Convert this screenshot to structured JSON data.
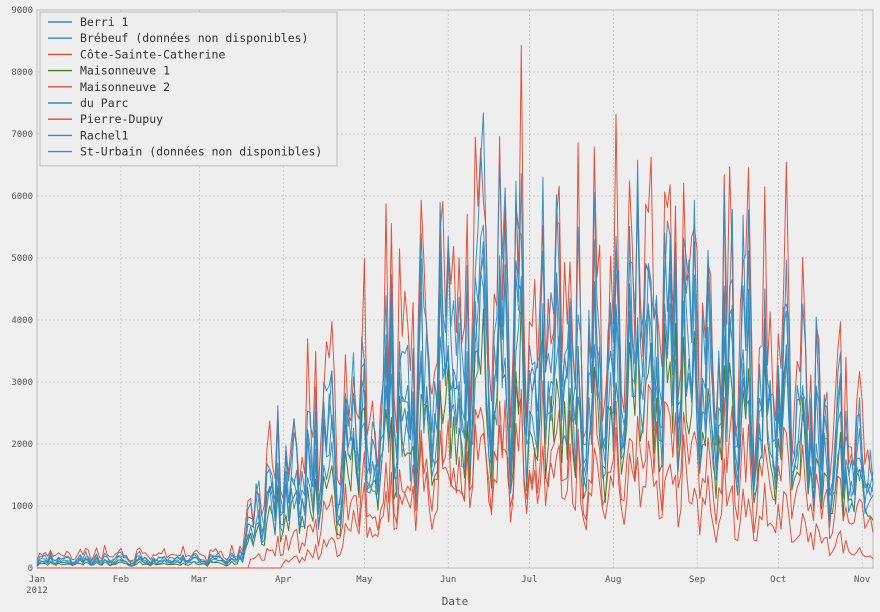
{
  "chart_data": {
    "type": "line",
    "xlabel": "Date",
    "ylabel": "",
    "x_start": "2012-01-01",
    "x_end": "2012-11-05",
    "xlim": [
      "2012-01-01",
      "2012-11-05"
    ],
    "ylim": [
      0,
      9000
    ],
    "grid": true,
    "legend_position": "top-left",
    "y_ticks": [
      0,
      1000,
      2000,
      3000,
      4000,
      5000,
      6000,
      7000,
      8000,
      9000
    ],
    "x_ticks": [
      {
        "date": "2012-01-01",
        "label": "Jan",
        "sublabel": "2012"
      },
      {
        "date": "2012-02-01",
        "label": "Feb",
        "sublabel": ""
      },
      {
        "date": "2012-03-01",
        "label": "Mar",
        "sublabel": ""
      },
      {
        "date": "2012-04-01",
        "label": "Apr",
        "sublabel": ""
      },
      {
        "date": "2012-05-01",
        "label": "May",
        "sublabel": ""
      },
      {
        "date": "2012-06-01",
        "label": "Jun",
        "sublabel": ""
      },
      {
        "date": "2012-07-01",
        "label": "Jul",
        "sublabel": ""
      },
      {
        "date": "2012-08-01",
        "label": "Aug",
        "sublabel": ""
      },
      {
        "date": "2012-09-01",
        "label": "Sep",
        "sublabel": ""
      },
      {
        "date": "2012-10-01",
        "label": "Oct",
        "sublabel": ""
      },
      {
        "date": "2012-11-01",
        "label": "Nov",
        "sublabel": ""
      }
    ],
    "series": [
      {
        "name": "Berri 1",
        "color": "#348abd",
        "scale": 1.0,
        "seed": 11,
        "active_from": "2012-01-01",
        "anchors": [
          [
            "2012-01-01",
            130
          ],
          [
            "2012-03-15",
            150
          ],
          [
            "2012-03-25",
            1500
          ],
          [
            "2012-04-10",
            1500
          ],
          [
            "2012-05-01",
            2600
          ],
          [
            "2012-06-01",
            3800
          ],
          [
            "2012-07-01",
            4000
          ],
          [
            "2012-08-01",
            3700
          ],
          [
            "2012-09-01",
            3900
          ],
          [
            "2012-10-01",
            3100
          ],
          [
            "2012-11-05",
            1700
          ]
        ]
      },
      {
        "name": "Brébeuf (données non disponibles)",
        "color": "#348abd",
        "scale": 1.2,
        "seed": 23,
        "active_from": "2012-01-01",
        "anchors": [
          [
            "2012-01-01",
            160
          ],
          [
            "2012-03-15",
            180
          ],
          [
            "2012-03-25",
            1800
          ],
          [
            "2012-04-10",
            1800
          ],
          [
            "2012-05-01",
            3100
          ],
          [
            "2012-06-01",
            4500
          ],
          [
            "2012-07-01",
            4700
          ],
          [
            "2012-08-01",
            4300
          ],
          [
            "2012-09-01",
            4500
          ],
          [
            "2012-10-01",
            3600
          ],
          [
            "2012-11-05",
            2000
          ]
        ]
      },
      {
        "name": "Côte-Sainte-Catherine",
        "color": "#e24a33",
        "scale": 0.75,
        "seed": 37,
        "active_from": "2012-03-20",
        "anchors": [
          [
            "2012-03-20",
            200
          ],
          [
            "2012-04-10",
            600
          ],
          [
            "2012-05-01",
            1400
          ],
          [
            "2012-06-01",
            2200
          ],
          [
            "2012-07-01",
            2300
          ],
          [
            "2012-08-01",
            2100
          ],
          [
            "2012-09-01",
            2200
          ],
          [
            "2012-10-01",
            1800
          ],
          [
            "2012-11-05",
            900
          ]
        ]
      },
      {
        "name": "Maisonneuve 1",
        "color": "#467821",
        "scale": 0.9,
        "seed": 41,
        "active_from": "2012-01-01",
        "anchors": [
          [
            "2012-01-01",
            70
          ],
          [
            "2012-03-15",
            80
          ],
          [
            "2012-03-25",
            1000
          ],
          [
            "2012-04-10",
            1100
          ],
          [
            "2012-05-01",
            2000
          ],
          [
            "2012-06-01",
            3000
          ],
          [
            "2012-07-01",
            3100
          ],
          [
            "2012-08-01",
            2900
          ],
          [
            "2012-09-01",
            3000
          ],
          [
            "2012-10-01",
            2400
          ],
          [
            "2012-11-05",
            1300
          ]
        ]
      },
      {
        "name": "Maisonneuve 2",
        "color": "#e24a33",
        "scale": 1.25,
        "seed": 53,
        "active_from": "2012-01-01",
        "anchors": [
          [
            "2012-01-01",
            250
          ],
          [
            "2012-03-15",
            260
          ],
          [
            "2012-03-25",
            2200
          ],
          [
            "2012-04-10",
            2500
          ],
          [
            "2012-05-01",
            3900
          ],
          [
            "2012-06-01",
            5600
          ],
          [
            "2012-07-01",
            5800
          ],
          [
            "2012-08-01",
            5300
          ],
          [
            "2012-09-01",
            5600
          ],
          [
            "2012-10-01",
            4400
          ],
          [
            "2012-11-05",
            2500
          ]
        ]
      },
      {
        "name": "du Parc",
        "color": "#348abd",
        "scale": 1.1,
        "seed": 67,
        "active_from": "2012-01-01",
        "anchors": [
          [
            "2012-01-01",
            110
          ],
          [
            "2012-03-15",
            140
          ],
          [
            "2012-03-25",
            1300
          ],
          [
            "2012-04-10",
            1400
          ],
          [
            "2012-05-01",
            2500
          ],
          [
            "2012-06-01",
            3600
          ],
          [
            "2012-07-01",
            3800
          ],
          [
            "2012-08-01",
            3500
          ],
          [
            "2012-09-01",
            3700
          ],
          [
            "2012-10-01",
            3000
          ],
          [
            "2012-11-05",
            1600
          ]
        ]
      },
      {
        "name": "Pierre-Dupuy",
        "color": "#e24a33",
        "scale": 0.85,
        "seed": 79,
        "active_from": "2012-04-01",
        "anchors": [
          [
            "2012-04-01",
            100
          ],
          [
            "2012-04-20",
            400
          ],
          [
            "2012-05-01",
            1000
          ],
          [
            "2012-06-01",
            1700
          ],
          [
            "2012-07-01",
            2000
          ],
          [
            "2012-08-01",
            1600
          ],
          [
            "2012-09-01",
            1400
          ],
          [
            "2012-10-01",
            900
          ],
          [
            "2012-11-05",
            200
          ]
        ]
      },
      {
        "name": "Rachel1",
        "color": "#348abd",
        "scale": 1.3,
        "seed": 83,
        "active_from": "2012-01-01",
        "anchors": [
          [
            "2012-01-01",
            180
          ],
          [
            "2012-03-15",
            200
          ],
          [
            "2012-03-25",
            1900
          ],
          [
            "2012-04-10",
            2100
          ],
          [
            "2012-05-01",
            3300
          ],
          [
            "2012-06-01",
            4800
          ],
          [
            "2012-07-01",
            5000
          ],
          [
            "2012-08-01",
            4600
          ],
          [
            "2012-09-01",
            4800
          ],
          [
            "2012-10-01",
            3900
          ],
          [
            "2012-11-05",
            2100
          ]
        ]
      },
      {
        "name": "St-Urbain (données non disponibles)",
        "color": "#348abd",
        "scale": 0.95,
        "seed": 97,
        "active_from": "2012-01-01",
        "anchors": [
          [
            "2012-01-01",
            90
          ],
          [
            "2012-03-15",
            110
          ],
          [
            "2012-03-25",
            1100
          ],
          [
            "2012-04-10",
            1200
          ],
          [
            "2012-05-01",
            2200
          ],
          [
            "2012-06-01",
            3200
          ],
          [
            "2012-07-01",
            3400
          ],
          [
            "2012-08-01",
            3100
          ],
          [
            "2012-09-01",
            3300
          ],
          [
            "2012-10-01",
            2600
          ],
          [
            "2012-11-05",
            1400
          ]
        ]
      }
    ]
  }
}
